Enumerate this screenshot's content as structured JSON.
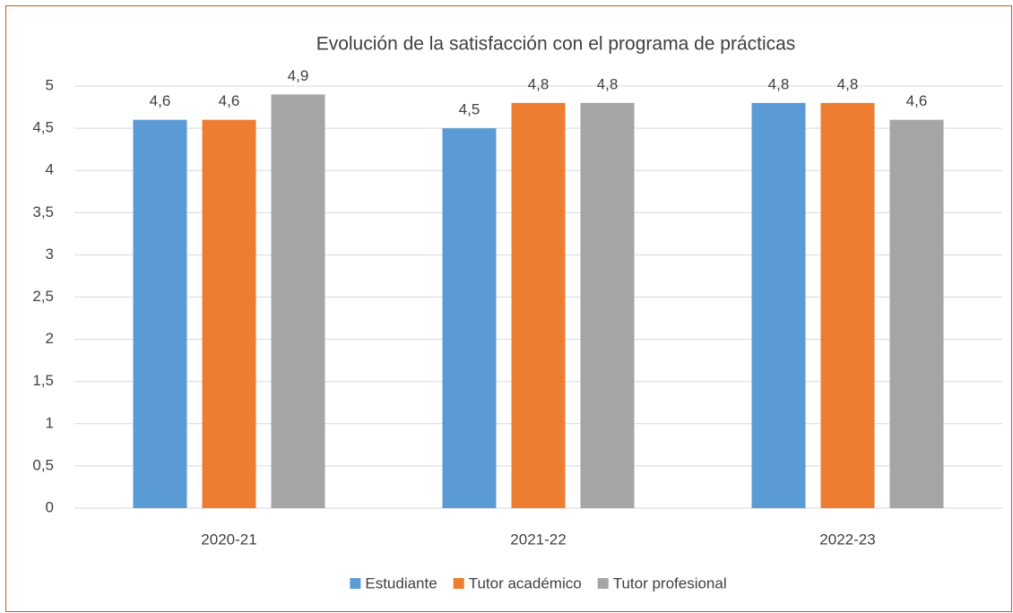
{
  "chart_data": {
    "type": "bar",
    "title": "Evolución de la satisfacción con el programa de prácticas",
    "categories": [
      "2020-21",
      "2021-22",
      "2022-23"
    ],
    "series": [
      {
        "name": "Estudiante",
        "color": "#5b9bd5",
        "values": [
          4.6,
          4.5,
          4.8
        ],
        "value_labels": [
          "4,6",
          "4,5",
          "4,8"
        ]
      },
      {
        "name": "Tutor académico",
        "color": "#ed7d31",
        "values": [
          4.6,
          4.8,
          4.8
        ],
        "value_labels": [
          "4,6",
          "4,8",
          "4,8"
        ]
      },
      {
        "name": "Tutor profesional",
        "color": "#a5a5a5",
        "values": [
          4.9,
          4.8,
          4.6
        ],
        "value_labels": [
          "4,9",
          "4,8",
          "4,6"
        ]
      }
    ],
    "ylim": [
      0,
      5
    ],
    "yticks": [
      0,
      {
        "value": 0.5,
        "label": "0,5"
      },
      1,
      {
        "value": 1.5,
        "label": "1,5"
      },
      2,
      {
        "value": 2.5,
        "label": "2,5"
      },
      3,
      {
        "value": 3.5,
        "label": "3,5"
      },
      4,
      {
        "value": 4.5,
        "label": "4,5"
      },
      5
    ],
    "grid": true,
    "legend": "bottom"
  }
}
